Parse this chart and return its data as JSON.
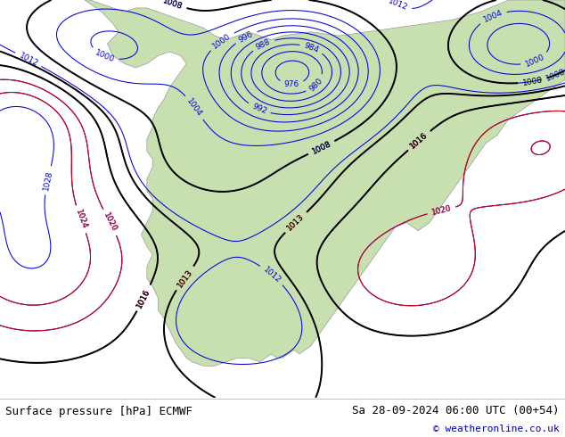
{
  "title_left": "Surface pressure [hPa] ECMWF",
  "title_right": "Sa 28-09-2024 06:00 UTC (00+54)",
  "copyright": "© weatheronline.co.uk",
  "bg_ocean_color": "#d0dce8",
  "bg_land_color": "#c8e0b0",
  "blue_color": "#0000dd",
  "red_color": "#dd0000",
  "black_color": "#000000",
  "footer_bg": "#ffffff",
  "footer_fontsize": 9,
  "label_fontsize": 6.5,
  "figsize": [
    6.34,
    4.9
  ],
  "dpi": 100,
  "levels_blue": [
    976,
    980,
    984,
    988,
    992,
    996,
    1000,
    1004,
    1008,
    1012,
    1016,
    1020,
    1024,
    1028
  ],
  "levels_red": [
    1013,
    1016,
    1020,
    1024
  ],
  "levels_black": [
    1008,
    1013,
    1016
  ]
}
